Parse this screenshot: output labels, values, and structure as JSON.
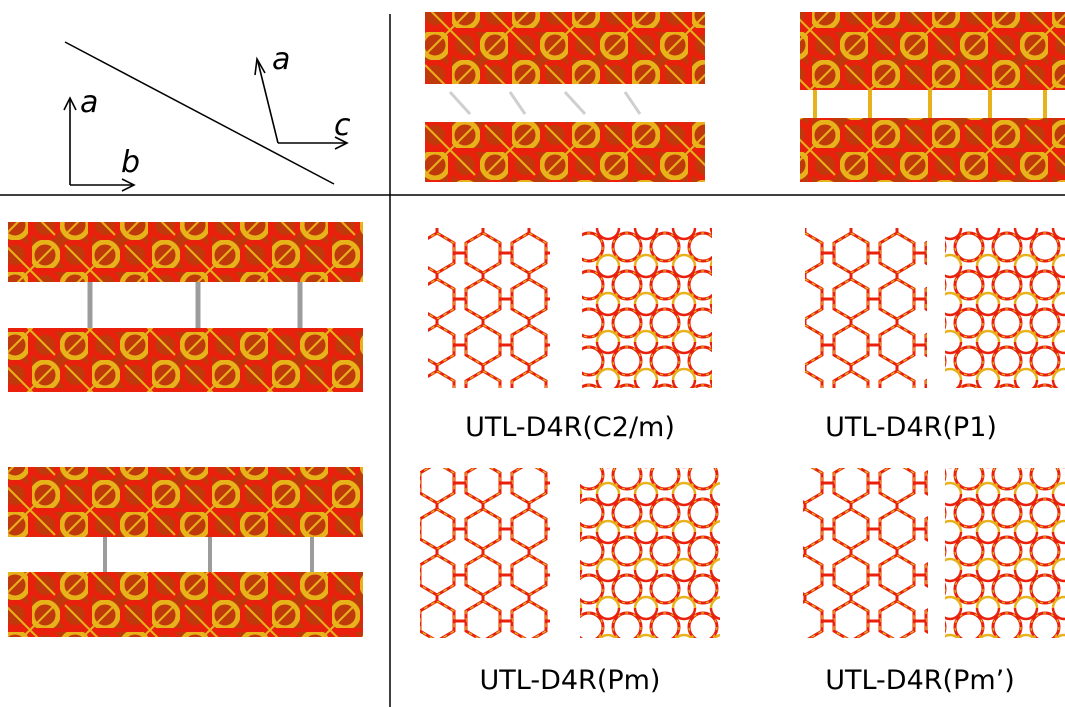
{
  "axes": {
    "left_set": {
      "up": "a",
      "right": "b"
    },
    "right_set": {
      "up": "a",
      "right": "c"
    }
  },
  "panel_labels": [
    "UTL-D4R(C2/m)",
    "UTL-D4R(P1)",
    "UTL-D4R(Pm)",
    "UTL-D4R(Pm’)"
  ],
  "colors": {
    "oxygen": "#e8200c",
    "silicon": "#e8b21a",
    "hydrogen": "#e8e8e8",
    "dark_edge": "#7a1f0a"
  }
}
